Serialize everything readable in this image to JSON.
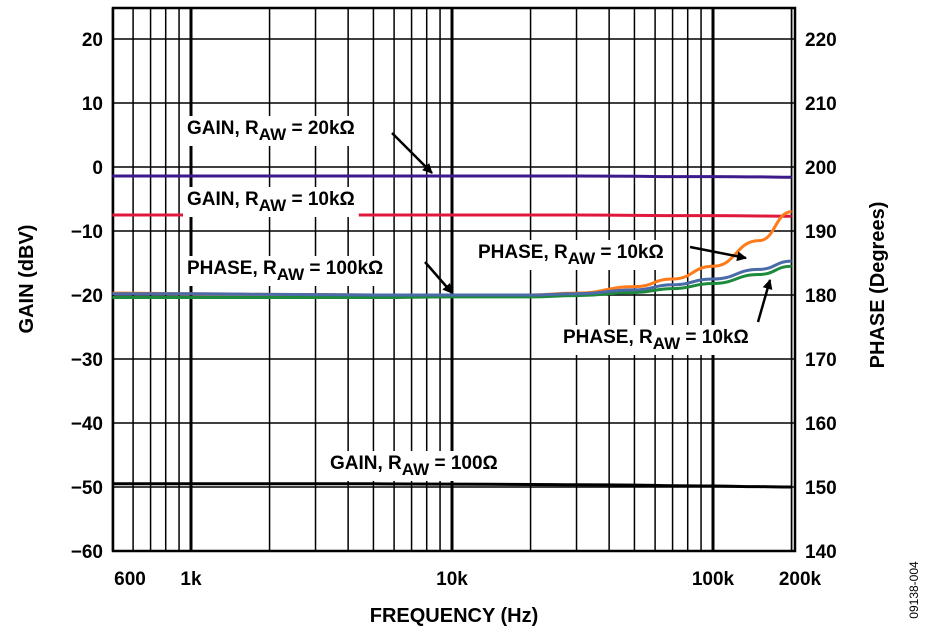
{
  "chart_data": {
    "type": "line",
    "title": "",
    "xlabel": "FREQUENCY (Hz)",
    "ylabel": "GAIN (dBV)",
    "y2label": "PHASE (Degrees)",
    "xscale": "log",
    "xlim": [
      500,
      200000
    ],
    "ylim": [
      -60,
      25
    ],
    "y2lim": [
      140,
      225
    ],
    "grid": true,
    "x_ticks": [
      {
        "value": 600,
        "label": "600"
      },
      {
        "value": 1000,
        "label": "1k"
      },
      {
        "value": 10000,
        "label": "10k"
      },
      {
        "value": 100000,
        "label": "100k"
      },
      {
        "value": 200000,
        "label": "200k"
      }
    ],
    "y_ticks": [
      {
        "value": 20,
        "label": "20"
      },
      {
        "value": 10,
        "label": "10"
      },
      {
        "value": 0,
        "label": "0"
      },
      {
        "value": -10,
        "label": "−10"
      },
      {
        "value": -20,
        "label": "−20"
      },
      {
        "value": -30,
        "label": "−30"
      },
      {
        "value": -40,
        "label": "−40"
      },
      {
        "value": -50,
        "label": "−50"
      },
      {
        "value": -60,
        "label": "−60"
      }
    ],
    "y2_ticks": [
      {
        "value": 220,
        "label": "220"
      },
      {
        "value": 210,
        "label": "210"
      },
      {
        "value": 200,
        "label": "200"
      },
      {
        "value": 190,
        "label": "190"
      },
      {
        "value": 180,
        "label": "180"
      },
      {
        "value": 170,
        "label": "170"
      },
      {
        "value": 160,
        "label": "160"
      },
      {
        "value": 150,
        "label": "150"
      },
      {
        "value": 140,
        "label": "140"
      }
    ],
    "x": [
      500,
      1000,
      2000,
      5000,
      10000,
      20000,
      30000,
      50000,
      70000,
      100000,
      150000,
      200000
    ],
    "series": [
      {
        "name": "GAIN, RAW = 20kΩ",
        "axis": "left",
        "color": "#3d1a8c",
        "values": [
          -1.4,
          -1.4,
          -1.4,
          -1.4,
          -1.4,
          -1.4,
          -1.4,
          -1.45,
          -1.5,
          -1.5,
          -1.55,
          -1.6
        ]
      },
      {
        "name": "GAIN, RAW = 10kΩ",
        "axis": "left",
        "color": "#e0183c",
        "values": [
          -7.5,
          -7.5,
          -7.5,
          -7.5,
          -7.5,
          -7.5,
          -7.5,
          -7.55,
          -7.6,
          -7.6,
          -7.65,
          -7.7
        ]
      },
      {
        "name": "GAIN, RAW = 100Ω",
        "axis": "left",
        "color": "#000000",
        "values": [
          -49.5,
          -49.5,
          -49.5,
          -49.5,
          -49.55,
          -49.6,
          -49.65,
          -49.7,
          -49.8,
          -49.85,
          -49.95,
          -50
        ]
      },
      {
        "name": "PHASE, RAW = 10kΩ",
        "axis": "right",
        "color": "#ff7a1a",
        "values": [
          180.3,
          180.2,
          180.1,
          180,
          180,
          180,
          180.3,
          181.3,
          182.5,
          184.5,
          188.5,
          193
        ]
      },
      {
        "name": "PHASE, RAW = 100kΩ",
        "axis": "right",
        "color": "#4a6aa8",
        "values": [
          180.2,
          180.2,
          180.1,
          180,
          180,
          180,
          180.2,
          180.8,
          181.6,
          182.5,
          184,
          185.3
        ]
      },
      {
        "name": "PHASE, RAW = 10kΩ (2)",
        "axis": "right",
        "color": "#1e8a3c",
        "values": [
          179.6,
          179.6,
          179.6,
          179.6,
          179.7,
          179.7,
          179.9,
          180.4,
          181,
          181.8,
          183.2,
          184.5
        ]
      }
    ],
    "annotations": [
      {
        "id": "gain20k",
        "prefix": "GAIN, R",
        "sub": "AW",
        "suffix": " = 20kΩ"
      },
      {
        "id": "gain10k",
        "prefix": "GAIN, R",
        "sub": "AW",
        "suffix": " = 10kΩ"
      },
      {
        "id": "phase100k",
        "prefix": "PHASE, R",
        "sub": "AW",
        "suffix": " = 100kΩ"
      },
      {
        "id": "phase10kA",
        "prefix": "PHASE, R",
        "sub": "AW",
        "suffix": " = 10kΩ"
      },
      {
        "id": "phase10kB",
        "prefix": "PHASE, R",
        "sub": "AW",
        "suffix": " = 10kΩ"
      },
      {
        "id": "gain100",
        "prefix": "GAIN, R",
        "sub": "AW",
        "suffix": " = 100Ω"
      }
    ],
    "figure_id": "09138-004"
  }
}
